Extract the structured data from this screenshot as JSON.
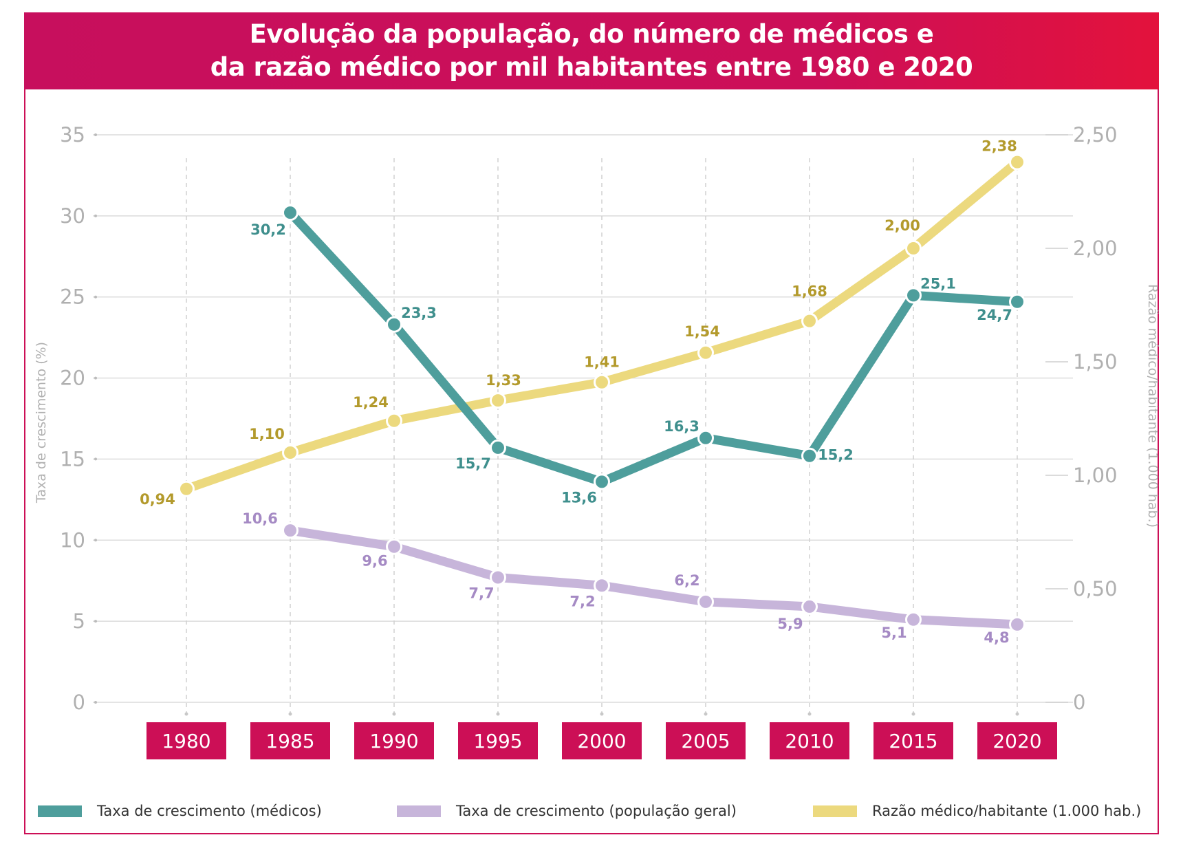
{
  "title": {
    "line1": "Evolução da população, do número de médicos e",
    "line2": "da razão médico por mil habitantes entre 1980 e 2020"
  },
  "colors": {
    "brand": "#cc0f56",
    "doctors": "#4e9e9c",
    "population": "#c7b5da",
    "ratio": "#ecd97e",
    "doctors_label": "#3f8f8d",
    "population_label": "#a58ac4",
    "ratio_label": "#b39a2c",
    "axis_text": "#b0b0b0",
    "grid": "#dcdcdc"
  },
  "legend": [
    {
      "label": "Taxa de crescimento (médicos)",
      "color": "#4e9e9c"
    },
    {
      "label": "Taxa de crescimento (população geral)",
      "color": "#c7b5da"
    },
    {
      "label": "Razão médico/habitante (1.000 hab.)",
      "color": "#ecd97e"
    }
  ],
  "chart_data": {
    "type": "line",
    "categories": [
      "1980",
      "1985",
      "1990",
      "1995",
      "2000",
      "2005",
      "2010",
      "2015",
      "2020"
    ],
    "left_axis": {
      "label": "Taxa de crescimento (%)",
      "ylim": [
        0,
        35
      ],
      "ticks": [
        0,
        5,
        10,
        15,
        20,
        25,
        30,
        35
      ],
      "tick_labels": [
        "0",
        "5",
        "10",
        "15",
        "20",
        "25",
        "30",
        "35"
      ]
    },
    "right_axis": {
      "label": "Razão médico/habitante (1.000 hab.)",
      "ylim": [
        0,
        2.5
      ],
      "ticks": [
        0,
        0.5,
        1.0,
        1.5,
        2.0,
        2.5
      ],
      "tick_labels": [
        "0",
        "0,50",
        "1,00",
        "1,50",
        "2,00",
        "2,50"
      ]
    },
    "grid": true,
    "legend_position": "bottom",
    "series": [
      {
        "name": "Taxa de crescimento (médicos)",
        "axis": "left",
        "values": [
          null,
          30.2,
          23.3,
          15.7,
          13.6,
          16.3,
          15.2,
          25.1,
          24.7
        ],
        "labels": [
          null,
          "30,2",
          "23,3",
          "15,7",
          "13,6",
          "16,3",
          "15,2",
          "25,1",
          "24,7"
        ]
      },
      {
        "name": "Taxa de crescimento (população geral)",
        "axis": "left",
        "values": [
          null,
          10.6,
          9.6,
          7.7,
          7.2,
          6.2,
          5.9,
          5.1,
          4.8
        ],
        "labels": [
          null,
          "10,6",
          "9,6",
          "7,7",
          "7,2",
          "6,2",
          "5,9",
          "5,1",
          "4,8"
        ]
      },
      {
        "name": "Razão médico/habitante (1.000 hab.)",
        "axis": "right",
        "values": [
          0.94,
          1.1,
          1.24,
          1.33,
          1.41,
          1.54,
          1.68,
          2.0,
          2.38
        ],
        "labels": [
          "0,94",
          "1,10",
          "1,24",
          "1,33",
          "1,41",
          "1,54",
          "1,68",
          "2,00",
          "2,38"
        ]
      }
    ]
  }
}
